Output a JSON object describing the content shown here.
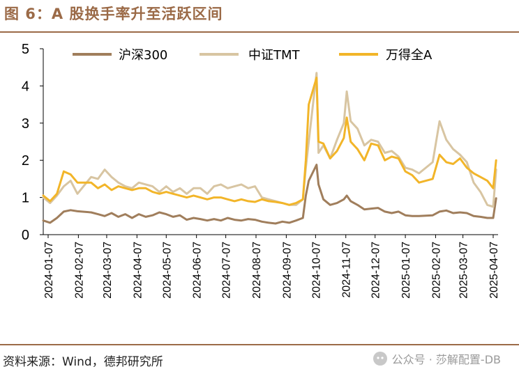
{
  "header": {
    "title": "图 6：A 股换手率升至活跃区间"
  },
  "footer": {
    "source": "资料来源：Wind，德邦研究所",
    "watermark": "公众号 · 莎解配置-DB"
  },
  "chart_data": {
    "type": "line",
    "title": "",
    "xlabel": "",
    "ylabel": "",
    "ylim": [
      0,
      5
    ],
    "yticks": [
      "0",
      "1",
      "2",
      "3",
      "4",
      "5"
    ],
    "x_tick_labels": [
      "2024-01-07",
      "2024-02-07",
      "2024-03-07",
      "2024-04-07",
      "2024-05-07",
      "2024-06-07",
      "2024-07-07",
      "2024-08-07",
      "2024-09-07",
      "2024-10-07",
      "2024-11-07",
      "2024-12-07",
      "2025-01-07",
      "2025-02-07",
      "2025-03-07",
      "2025-04-07"
    ],
    "legend_position": "top",
    "grid": false,
    "x": [
      "2024-01-02",
      "2024-01-09",
      "2024-01-16",
      "2024-01-23",
      "2024-01-30",
      "2024-02-06",
      "2024-02-20",
      "2024-02-27",
      "2024-03-05",
      "2024-03-12",
      "2024-03-19",
      "2024-03-26",
      "2024-04-02",
      "2024-04-09",
      "2024-04-16",
      "2024-04-23",
      "2024-04-30",
      "2024-05-07",
      "2024-05-14",
      "2024-05-21",
      "2024-05-28",
      "2024-06-04",
      "2024-06-11",
      "2024-06-18",
      "2024-06-25",
      "2024-07-02",
      "2024-07-09",
      "2024-07-16",
      "2024-07-23",
      "2024-07-30",
      "2024-08-06",
      "2024-08-13",
      "2024-08-20",
      "2024-08-27",
      "2024-09-03",
      "2024-09-10",
      "2024-09-17",
      "2024-09-24",
      "2024-09-27",
      "2024-09-30",
      "2024-10-08",
      "2024-10-10",
      "2024-10-15",
      "2024-10-22",
      "2024-10-29",
      "2024-11-05",
      "2024-11-08",
      "2024-11-12",
      "2024-11-19",
      "2024-11-26",
      "2024-12-03",
      "2024-12-10",
      "2024-12-17",
      "2024-12-24",
      "2024-12-31",
      "2025-01-07",
      "2025-01-14",
      "2025-01-21",
      "2025-02-04",
      "2025-02-11",
      "2025-02-18",
      "2025-02-25",
      "2025-03-04",
      "2025-03-11",
      "2025-03-18",
      "2025-03-25",
      "2025-04-01",
      "2025-04-07",
      "2025-04-10"
    ],
    "series": [
      {
        "name": "沪深300",
        "color": "#a07e5c",
        "values": [
          0.38,
          0.32,
          0.45,
          0.62,
          0.66,
          0.63,
          0.6,
          0.55,
          0.5,
          0.58,
          0.48,
          0.55,
          0.45,
          0.55,
          0.48,
          0.52,
          0.6,
          0.55,
          0.48,
          0.52,
          0.4,
          0.45,
          0.42,
          0.38,
          0.42,
          0.38,
          0.45,
          0.4,
          0.38,
          0.42,
          0.4,
          0.35,
          0.32,
          0.3,
          0.35,
          0.32,
          0.38,
          0.45,
          1.05,
          1.45,
          1.88,
          1.35,
          0.95,
          0.8,
          0.85,
          0.95,
          1.05,
          0.9,
          0.8,
          0.68,
          0.7,
          0.72,
          0.62,
          0.58,
          0.62,
          0.52,
          0.5,
          0.5,
          0.52,
          0.62,
          0.65,
          0.58,
          0.6,
          0.58,
          0.5,
          0.48,
          0.45,
          0.45,
          0.98
        ]
      },
      {
        "name": "中证TMT",
        "color": "#d8c5a2",
        "values": [
          1.0,
          0.85,
          1.05,
          1.3,
          1.45,
          1.1,
          1.55,
          1.5,
          1.75,
          1.55,
          1.4,
          1.3,
          1.25,
          1.4,
          1.35,
          1.3,
          1.15,
          1.3,
          1.15,
          1.25,
          1.1,
          1.25,
          1.25,
          1.1,
          1.3,
          1.35,
          1.25,
          1.3,
          1.35,
          1.25,
          1.3,
          1.0,
          0.95,
          0.9,
          0.85,
          0.8,
          0.8,
          0.95,
          1.8,
          2.5,
          4.35,
          2.2,
          2.4,
          2.05,
          2.55,
          3.0,
          3.85,
          3.05,
          2.85,
          2.4,
          2.55,
          2.5,
          2.2,
          2.25,
          2.1,
          1.8,
          1.75,
          1.65,
          1.95,
          3.05,
          2.55,
          2.3,
          2.15,
          1.95,
          1.4,
          1.15,
          0.8,
          0.75,
          1.75
        ]
      },
      {
        "name": "万得全A",
        "color": "#f2b529",
        "values": [
          1.05,
          0.9,
          1.1,
          1.7,
          1.62,
          1.4,
          1.4,
          1.25,
          1.35,
          1.2,
          1.3,
          1.25,
          1.2,
          1.25,
          1.25,
          1.15,
          1.1,
          1.15,
          1.1,
          1.05,
          1.0,
          1.05,
          1.0,
          0.95,
          1.0,
          1.0,
          0.95,
          0.9,
          0.95,
          0.9,
          0.88,
          0.95,
          0.9,
          0.88,
          0.85,
          0.8,
          0.85,
          0.95,
          2.0,
          3.5,
          4.22,
          2.5,
          2.45,
          2.05,
          2.25,
          2.6,
          3.15,
          2.5,
          2.3,
          2.0,
          2.45,
          2.4,
          2.0,
          2.1,
          2.05,
          1.7,
          1.6,
          1.4,
          1.5,
          2.15,
          1.95,
          1.9,
          2.05,
          1.8,
          1.65,
          1.55,
          1.45,
          1.25,
          2.0
        ]
      }
    ]
  }
}
